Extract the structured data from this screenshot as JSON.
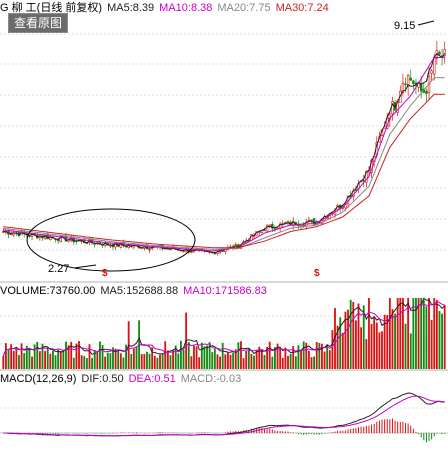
{
  "price_header": {
    "title": "G 柳 工(日线 前复权)",
    "ma5": "MA5:8.39",
    "ma10": "MA10:8.38",
    "ma20": "MA20:7.75",
    "ma30": "MA30:7.24"
  },
  "view_button": "查看原图",
  "annotations": {
    "high": "9.15",
    "low": "2.27"
  },
  "volume_header": {
    "title": "VOLUME:73760.00",
    "ma5": "MA5:152688.88",
    "ma10": "MA10:171586.83"
  },
  "macd_header": {
    "title": "MACD(12,26,9)",
    "dif": "DIF:0.50",
    "dea": "DEA:0.51",
    "macd": "MACD:-0.03"
  },
  "colors": {
    "up": "#dd1111",
    "down": "#118811",
    "ma5": "#222222",
    "ma10": "#cc00cc",
    "ma20": "#888888",
    "ma30": "#cc2222",
    "dif": "#222222",
    "dea": "#cc00cc",
    "grid": "#bbbbbb"
  },
  "chart_data": [
    {
      "type": "line",
      "title": "柳 工(日线 前复权)",
      "series": [
        {
          "name": "MA5",
          "x": [
            0,
            20,
            40,
            60,
            80,
            90,
            100,
            110,
            120,
            130,
            140,
            148,
            156,
            165
          ],
          "values": [
            3.0,
            2.8,
            2.6,
            2.5,
            2.35,
            2.55,
            3.1,
            3.25,
            3.3,
            3.85,
            4.9,
            6.8,
            7.3,
            8.39
          ]
        },
        {
          "name": "MA10",
          "x": [
            0,
            20,
            40,
            60,
            80,
            90,
            100,
            110,
            120,
            130,
            140,
            148,
            156,
            165
          ],
          "values": [
            3.05,
            2.85,
            2.65,
            2.52,
            2.4,
            2.5,
            2.95,
            3.2,
            3.25,
            3.75,
            4.7,
            6.5,
            7.2,
            8.38
          ]
        },
        {
          "name": "MA20",
          "x": [
            0,
            20,
            40,
            60,
            80,
            90,
            100,
            110,
            120,
            130,
            140,
            148,
            156,
            165
          ],
          "values": [
            3.1,
            2.9,
            2.7,
            2.55,
            2.45,
            2.48,
            2.8,
            3.1,
            3.2,
            3.6,
            4.4,
            6.0,
            6.9,
            7.75
          ]
        },
        {
          "name": "MA30",
          "x": [
            0,
            20,
            40,
            60,
            80,
            90,
            100,
            110,
            120,
            130,
            140,
            148,
            156,
            165
          ],
          "values": [
            3.15,
            2.95,
            2.75,
            2.6,
            2.5,
            2.5,
            2.7,
            3.0,
            3.15,
            3.45,
            4.1,
            5.6,
            6.5,
            7.24
          ]
        }
      ],
      "annotations": [
        "9.15",
        "2.27"
      ],
      "ylim": [
        1.5,
        9.6
      ]
    },
    {
      "type": "bar",
      "title": "VOLUME",
      "series": [
        {
          "name": "MA5",
          "values": [
            152688.88
          ]
        },
        {
          "name": "MA10",
          "values": [
            171586.83
          ]
        }
      ],
      "last_volume": 73760.0
    },
    {
      "type": "line",
      "title": "MACD(12,26,9)",
      "series": [
        {
          "name": "DIF",
          "values": [
            0.5
          ]
        },
        {
          "name": "DEA",
          "values": [
            0.51
          ]
        },
        {
          "name": "MACD",
          "values": [
            -0.03
          ]
        }
      ]
    }
  ]
}
